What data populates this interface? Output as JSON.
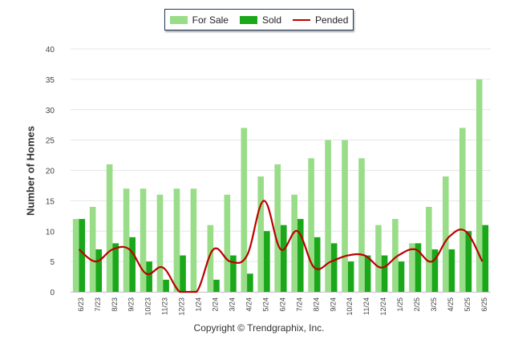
{
  "legend": {
    "for_sale": "For Sale",
    "sold": "Sold",
    "pended": "Pended"
  },
  "colors": {
    "for_sale": "#99dd88",
    "sold": "#1aa81a",
    "pended": "#bb0000",
    "grid": "#e6e6e6",
    "axis_text": "#444444"
  },
  "footer": "Copyright © Trendgraphix, Inc.",
  "chart_data": {
    "type": "bar",
    "ylabel": "Number of Homes",
    "ylim": [
      0,
      40
    ],
    "yticks": [
      0,
      5,
      10,
      15,
      20,
      25,
      30,
      35,
      40
    ],
    "grid": true,
    "legend_position": "top-center",
    "categories": [
      "6/23",
      "7/23",
      "8/23",
      "9/23",
      "10/23",
      "11/23",
      "12/23",
      "1/24",
      "2/24",
      "3/24",
      "4/24",
      "5/24",
      "6/24",
      "7/24",
      "8/24",
      "9/24",
      "10/24",
      "11/24",
      "12/24",
      "1/25",
      "2/25",
      "3/25",
      "4/25",
      "5/25",
      "6/25"
    ],
    "series": [
      {
        "name": "For Sale",
        "kind": "bar",
        "values": [
          12,
          14,
          21,
          17,
          17,
          16,
          17,
          17,
          11,
          16,
          27,
          19,
          21,
          16,
          22,
          25,
          25,
          22,
          11,
          12,
          8,
          14,
          19,
          27,
          35
        ]
      },
      {
        "name": "Sold",
        "kind": "bar",
        "values": [
          12,
          7,
          8,
          9,
          5,
          2,
          6,
          0,
          2,
          6,
          3,
          10,
          11,
          12,
          9,
          8,
          5,
          6,
          6,
          5,
          8,
          7,
          7,
          10,
          11
        ]
      },
      {
        "name": "Pended",
        "kind": "line",
        "values": [
          7,
          5,
          7,
          7,
          3,
          4,
          0,
          0,
          7,
          5,
          6,
          15,
          7,
          10,
          4,
          5,
          6,
          6,
          4,
          6,
          7,
          5,
          9,
          10,
          5
        ]
      }
    ]
  }
}
